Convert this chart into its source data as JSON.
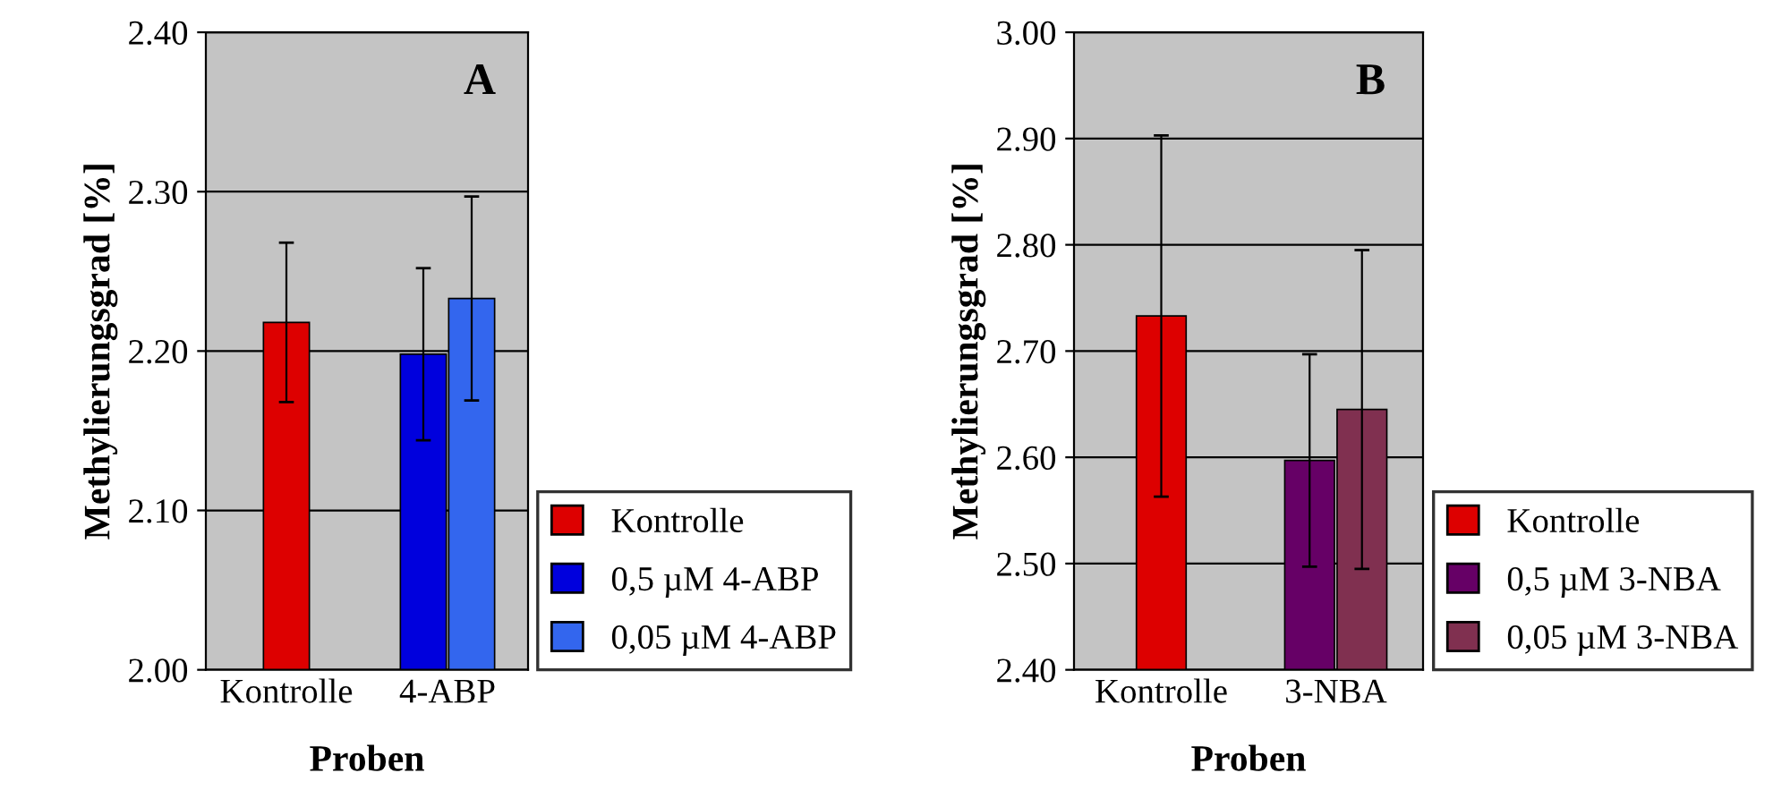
{
  "chart_data": [
    {
      "type": "bar",
      "ylabel": "Methylierungsgrad [%]",
      "xlabel": "Proben",
      "categories": [
        "Kontrolle",
        "4-ABP"
      ],
      "ylim": [
        2.0,
        2.4
      ],
      "yticks": [
        {
          "value": 2.0,
          "label": "2.00"
        },
        {
          "value": 2.1,
          "label": "2.10"
        },
        {
          "value": 2.2,
          "label": "2.20"
        },
        {
          "value": 2.3,
          "label": "2.30"
        },
        {
          "value": 2.4,
          "label": "2.40"
        }
      ],
      "grid": "y",
      "legend": "right",
      "annotations": [
        "A"
      ],
      "series": [
        {
          "name": "Kontrolle",
          "color": "#dd0000",
          "values": [
            2.218,
            null
          ],
          "errors": [
            0.05,
            null
          ]
        },
        {
          "name": "0,5 µM 4-ABP",
          "color": "#0000dd",
          "values": [
            null,
            2.198
          ],
          "errors": [
            null,
            0.054
          ]
        },
        {
          "name": "0,05 µM 4-ABP",
          "color": "#3366ee",
          "values": [
            null,
            2.233
          ],
          "errors": [
            null,
            0.064
          ]
        }
      ]
    },
    {
      "type": "bar",
      "ylabel": "Methylierungsgrad [%]",
      "xlabel": "Proben",
      "categories": [
        "Kontrolle",
        "3-NBA"
      ],
      "ylim": [
        2.4,
        3.0
      ],
      "yticks": [
        {
          "value": 2.4,
          "label": "2.40"
        },
        {
          "value": 2.5,
          "label": "2.50"
        },
        {
          "value": 2.6,
          "label": "2.60"
        },
        {
          "value": 2.7,
          "label": "2.70"
        },
        {
          "value": 2.8,
          "label": "2.80"
        },
        {
          "value": 2.9,
          "label": "2.90"
        },
        {
          "value": 3.0,
          "label": "3.00"
        }
      ],
      "grid": "y",
      "legend": "right",
      "annotations": [
        "B"
      ],
      "series": [
        {
          "name": "Kontrolle",
          "color": "#dd0000",
          "values": [
            2.733,
            null
          ],
          "errors": [
            0.17,
            null
          ]
        },
        {
          "name": "0,5 µM 3-NBA",
          "color": "#660066",
          "values": [
            null,
            2.597
          ],
          "errors": [
            null,
            0.1
          ]
        },
        {
          "name": "0,05 µM 3-NBA",
          "color": "#803050",
          "values": [
            null,
            2.645
          ],
          "errors": [
            null,
            0.15
          ]
        }
      ]
    }
  ]
}
